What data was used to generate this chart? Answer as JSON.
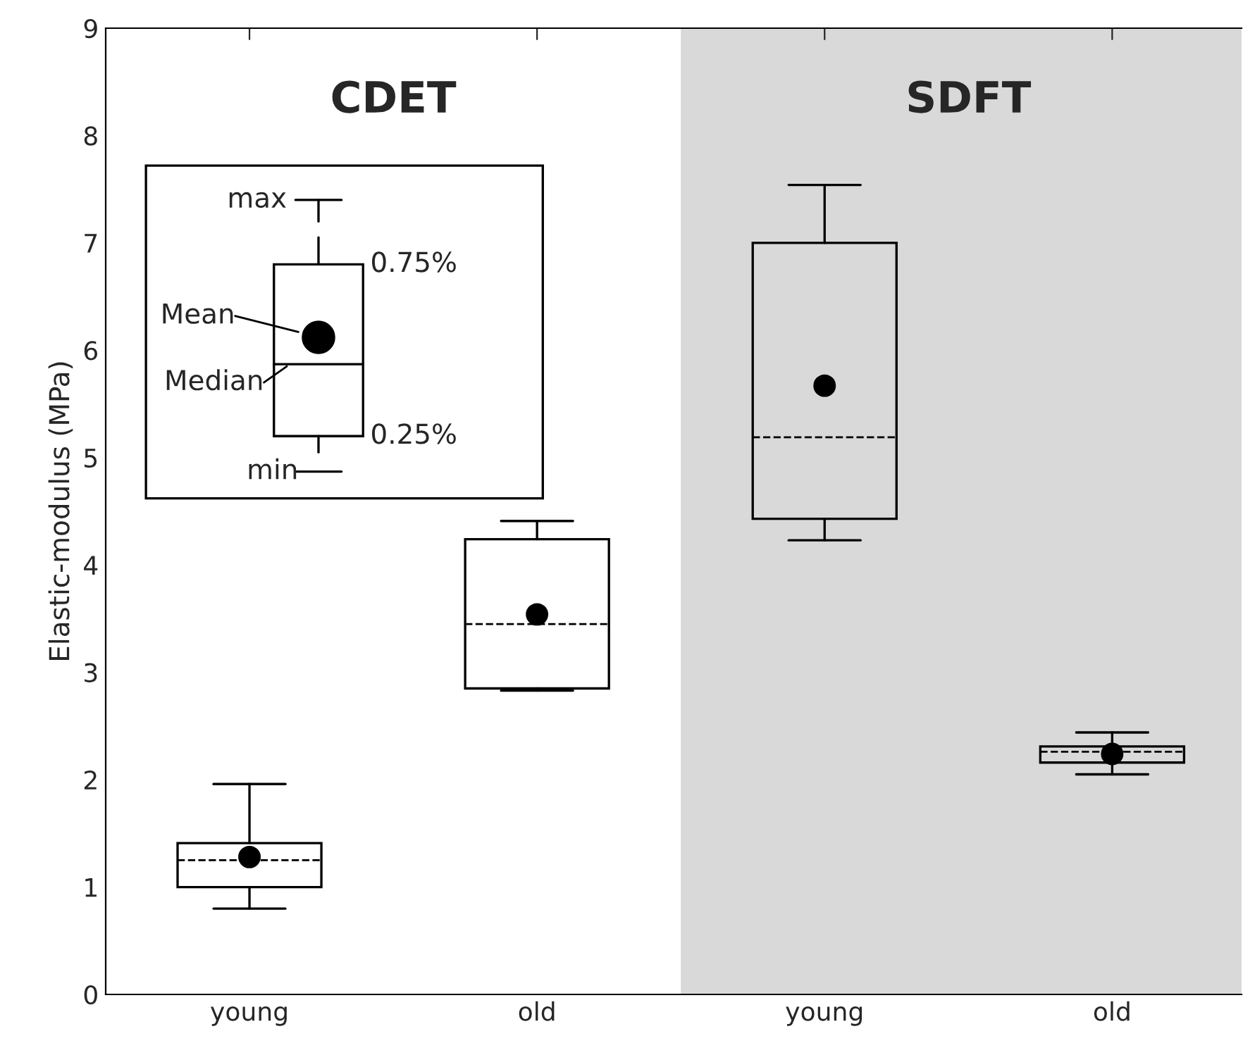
{
  "chart_data": {
    "type": "box",
    "ylabel": "Elastic-modulus (MPa)",
    "categories": [
      "young",
      "old",
      "young",
      "old"
    ],
    "boxes": [
      {
        "low": 0.8,
        "q1": 1.0,
        "median": 1.25,
        "q3": 1.41,
        "high": 1.96,
        "mean": 1.28
      },
      {
        "low": 2.83,
        "q1": 2.85,
        "median": 3.45,
        "q3": 4.24,
        "high": 4.41,
        "mean": 3.54
      },
      {
        "low": 4.23,
        "q1": 4.43,
        "median": 5.19,
        "q3": 7.0,
        "high": 7.54,
        "mean": 5.67
      },
      {
        "low": 2.05,
        "q1": 2.16,
        "median": 2.26,
        "q3": 2.31,
        "high": 2.44,
        "mean": 2.24
      }
    ],
    "ylim": [
      0,
      9
    ],
    "yticks": [
      0,
      1,
      2,
      3,
      4,
      5,
      6,
      7,
      8,
      9
    ],
    "annotations": [
      "CDET",
      "SDFT",
      "max",
      "0.75%",
      "Mean",
      "Median",
      "min",
      "0.25%"
    ],
    "marker": "circle",
    "grid": false,
    "legend": false
  }
}
